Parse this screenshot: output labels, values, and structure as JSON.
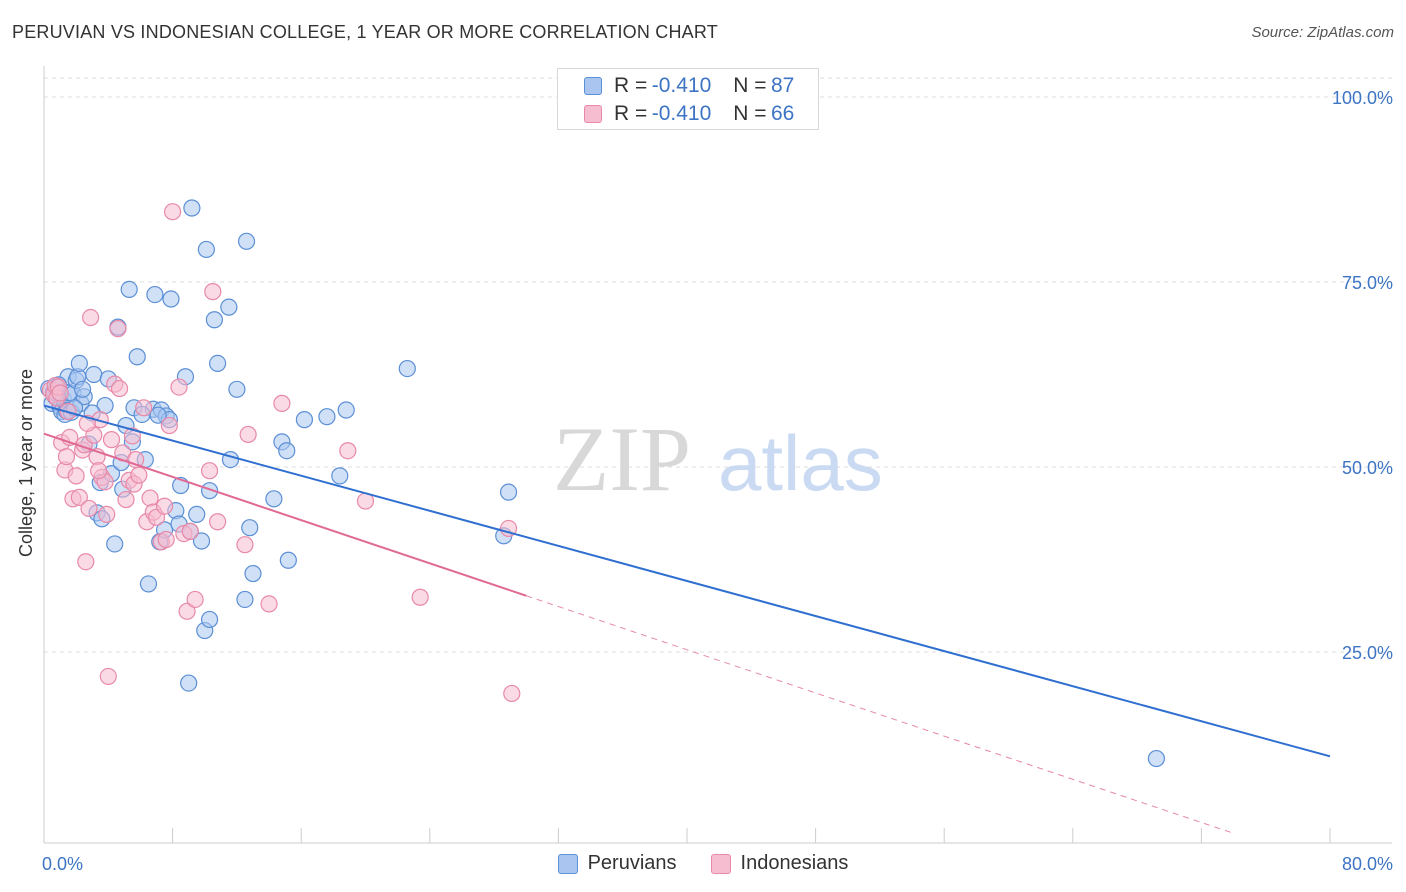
{
  "header": {
    "title": "PERUVIAN VS INDONESIAN COLLEGE, 1 YEAR OR MORE CORRELATION CHART",
    "source": "Source: ZipAtlas.com"
  },
  "legend": {
    "rows": [
      {
        "r_label": "R =",
        "r_value": "-0.410",
        "n_label": "N =",
        "n_value": "87"
      },
      {
        "r_label": "R =",
        "r_value": "-0.410",
        "n_label": "N =",
        "n_value": "66"
      }
    ],
    "bottom": [
      "Peruvians",
      "Indonesians"
    ]
  },
  "colors": {
    "blue_fill": "#aac6f0",
    "blue_stroke": "#5b8fd6",
    "blue_line": "#2f6fd0",
    "pink_fill": "#f6bcd0",
    "pink_stroke": "#e889a8",
    "pink_line": "#e06a94",
    "axis_text": "#3d74c4",
    "grid": "#dddddd"
  },
  "chart_data": {
    "type": "scatter",
    "title": "PERUVIAN VS INDONESIAN COLLEGE, 1 YEAR OR MORE CORRELATION CHART",
    "xlabel": "",
    "ylabel": "College, 1 year or more",
    "xlim": [
      0,
      80
    ],
    "ylim": [
      0,
      105
    ],
    "x_tick_labels": [
      "0.0%",
      "80.0%"
    ],
    "y_ticks": [
      25,
      50,
      75,
      100
    ],
    "y_tick_labels": [
      "25.0%",
      "50.0%",
      "75.0%",
      "100.0%"
    ],
    "watermark": {
      "zip": "ZIP",
      "atlas": "atlas"
    },
    "series": [
      {
        "name": "Peruvians",
        "trend": {
          "x": [
            0,
            80
          ],
          "y": [
            58.3,
            10.9
          ]
        },
        "points": [
          [
            0.3,
            60.6
          ],
          [
            0.5,
            58.6
          ],
          [
            0.6,
            60.1
          ],
          [
            0.7,
            59.5
          ],
          [
            0.8,
            60.8
          ],
          [
            0.9,
            59.8
          ],
          [
            1.0,
            58.1
          ],
          [
            1.1,
            57.5
          ],
          [
            1.2,
            59.2
          ],
          [
            1.3,
            57.1
          ],
          [
            1.4,
            57.6
          ],
          [
            1.5,
            62.2
          ],
          [
            1.6,
            60.0
          ],
          [
            1.7,
            57.4
          ],
          [
            1.8,
            59.9
          ],
          [
            2.0,
            61.7
          ],
          [
            2.1,
            62.2
          ],
          [
            2.2,
            64.0
          ],
          [
            2.3,
            58.6
          ],
          [
            2.5,
            59.5
          ],
          [
            2.8,
            53.1
          ],
          [
            3.1,
            62.5
          ],
          [
            3.3,
            43.8
          ],
          [
            3.5,
            47.9
          ],
          [
            3.6,
            43.0
          ],
          [
            3.8,
            58.3
          ],
          [
            4.0,
            61.9
          ],
          [
            4.2,
            49.1
          ],
          [
            4.4,
            39.6
          ],
          [
            4.6,
            68.9
          ],
          [
            4.9,
            47.0
          ],
          [
            5.1,
            55.6
          ],
          [
            5.3,
            74.0
          ],
          [
            5.5,
            53.4
          ],
          [
            5.6,
            58.0
          ],
          [
            5.8,
            64.9
          ],
          [
            6.3,
            51.0
          ],
          [
            6.5,
            34.2
          ],
          [
            6.8,
            57.8
          ],
          [
            6.9,
            73.3
          ],
          [
            7.2,
            39.9
          ],
          [
            7.3,
            57.7
          ],
          [
            7.5,
            41.5
          ],
          [
            7.6,
            56.9
          ],
          [
            7.8,
            56.4
          ],
          [
            7.9,
            72.7
          ],
          [
            8.2,
            44.1
          ],
          [
            8.4,
            42.3
          ],
          [
            8.5,
            47.5
          ],
          [
            8.8,
            62.2
          ],
          [
            9.0,
            20.8
          ],
          [
            9.1,
            41.3
          ],
          [
            9.2,
            85.0
          ],
          [
            9.5,
            43.6
          ],
          [
            9.8,
            40.0
          ],
          [
            10.0,
            27.9
          ],
          [
            10.1,
            79.4
          ],
          [
            10.3,
            46.8
          ],
          [
            10.3,
            29.4
          ],
          [
            10.6,
            69.9
          ],
          [
            10.8,
            64.0
          ],
          [
            11.5,
            71.6
          ],
          [
            11.6,
            51.0
          ],
          [
            12.0,
            60.5
          ],
          [
            12.5,
            32.1
          ],
          [
            12.6,
            80.5
          ],
          [
            12.8,
            41.8
          ],
          [
            13.0,
            35.6
          ],
          [
            14.3,
            45.7
          ],
          [
            14.8,
            53.4
          ],
          [
            15.1,
            52.2
          ],
          [
            15.2,
            37.4
          ],
          [
            16.2,
            56.4
          ],
          [
            17.6,
            56.8
          ],
          [
            18.4,
            48.8
          ],
          [
            18.8,
            57.7
          ],
          [
            22.6,
            63.3
          ],
          [
            28.6,
            40.7
          ],
          [
            28.9,
            46.6
          ],
          [
            69.2,
            10.6
          ],
          [
            1.9,
            58.0
          ],
          [
            2.4,
            60.5
          ],
          [
            4.8,
            50.6
          ],
          [
            6.1,
            57.1
          ],
          [
            0.9,
            61.1
          ],
          [
            3.0,
            57.3
          ],
          [
            7.1,
            57.0
          ]
        ]
      },
      {
        "name": "Indonesians",
        "trend": {
          "x": [
            0,
            30
          ],
          "y": [
            54.5,
            32.6
          ]
        },
        "trend_dashed": {
          "x": [
            30,
            74
          ],
          "y": [
            32.6,
            0.5
          ]
        },
        "points": [
          [
            0.4,
            60.4
          ],
          [
            0.6,
            59.8
          ],
          [
            0.7,
            61.0
          ],
          [
            0.8,
            59.3
          ],
          [
            0.9,
            60.8
          ],
          [
            1.0,
            60.0
          ],
          [
            1.1,
            53.3
          ],
          [
            1.3,
            49.6
          ],
          [
            1.4,
            51.4
          ],
          [
            1.6,
            54.0
          ],
          [
            1.8,
            45.7
          ],
          [
            2.0,
            48.8
          ],
          [
            2.2,
            45.9
          ],
          [
            2.4,
            52.3
          ],
          [
            2.5,
            53.0
          ],
          [
            2.6,
            37.2
          ],
          [
            2.8,
            44.4
          ],
          [
            2.9,
            70.2
          ],
          [
            3.1,
            54.3
          ],
          [
            3.3,
            51.4
          ],
          [
            3.5,
            56.4
          ],
          [
            3.6,
            48.6
          ],
          [
            3.8,
            48.0
          ],
          [
            3.9,
            43.6
          ],
          [
            4.0,
            21.7
          ],
          [
            4.2,
            53.7
          ],
          [
            4.4,
            61.2
          ],
          [
            4.6,
            68.7
          ],
          [
            4.7,
            60.6
          ],
          [
            4.9,
            51.9
          ],
          [
            5.1,
            45.6
          ],
          [
            5.3,
            48.2
          ],
          [
            5.5,
            54.2
          ],
          [
            5.6,
            47.7
          ],
          [
            5.9,
            48.9
          ],
          [
            6.2,
            58.0
          ],
          [
            6.4,
            42.6
          ],
          [
            6.6,
            45.8
          ],
          [
            6.8,
            43.9
          ],
          [
            7.0,
            43.2
          ],
          [
            7.3,
            39.9
          ],
          [
            7.6,
            40.2
          ],
          [
            7.8,
            55.6
          ],
          [
            8.0,
            84.5
          ],
          [
            8.4,
            60.8
          ],
          [
            8.7,
            41.0
          ],
          [
            8.9,
            30.5
          ],
          [
            9.1,
            41.3
          ],
          [
            9.4,
            32.1
          ],
          [
            10.3,
            49.5
          ],
          [
            10.5,
            73.7
          ],
          [
            10.8,
            42.6
          ],
          [
            12.5,
            39.5
          ],
          [
            12.7,
            54.4
          ],
          [
            14.0,
            31.5
          ],
          [
            14.8,
            58.6
          ],
          [
            18.9,
            52.2
          ],
          [
            20.0,
            45.4
          ],
          [
            23.4,
            32.4
          ],
          [
            28.9,
            41.7
          ],
          [
            29.1,
            19.4
          ],
          [
            1.5,
            57.5
          ],
          [
            3.4,
            49.5
          ],
          [
            5.7,
            51.0
          ],
          [
            7.5,
            44.7
          ],
          [
            2.7,
            55.9
          ]
        ]
      }
    ]
  }
}
